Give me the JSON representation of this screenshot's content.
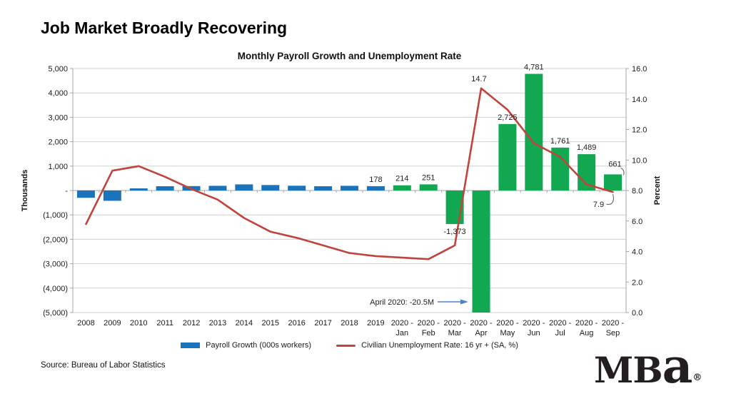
{
  "page": {
    "title": "Job Market Broadly Recovering",
    "source": "Source: Bureau of Labor Statistics",
    "logo": {
      "text_mb": "MB",
      "text_a": "a",
      "reg": "®"
    }
  },
  "chart_data": {
    "type": "combo-bar-line",
    "title": "Monthly Payroll Growth and Unemployment Rate",
    "categories": [
      "2008",
      "2009",
      "2010",
      "2011",
      "2012",
      "2013",
      "2014",
      "2015",
      "2016",
      "2017",
      "2018",
      "2019",
      "2020 Jan",
      "2020 Feb",
      "2020 Mar",
      "2020 Apr",
      "2020 May",
      "2020 Jun",
      "2020 Jul",
      "2020 Aug",
      "2020 Sep"
    ],
    "x_tick_line1": [
      "2008",
      "2009",
      "2010",
      "2011",
      "2012",
      "2013",
      "2014",
      "2015",
      "2016",
      "2017",
      "2018",
      "2019",
      "2020 -",
      "2020 -",
      "2020 -",
      "2020 -",
      "2020 -",
      "2020 -",
      "2020 -",
      "2020 -",
      "2020 -"
    ],
    "x_tick_line2": [
      "",
      "",
      "",
      "",
      "",
      "",
      "",
      "",
      "",
      "",
      "",
      "",
      "Jan",
      "Feb",
      "Mar",
      "Apr",
      "May",
      "Jun",
      "Jul",
      "Aug",
      "Sep"
    ],
    "series": [
      {
        "name": "Payroll Growth (000s workers)",
        "type": "bar",
        "axis": "left",
        "values": [
          -298,
          -421,
          88,
          174,
          181,
          192,
          250,
          226,
          195,
          176,
          193,
          178,
          214,
          251,
          -1373,
          -20500,
          2725,
          4781,
          1761,
          1489,
          661
        ]
      },
      {
        "name": "Civilian Unemployment Rate: 16 yr + (SA, %)",
        "type": "line",
        "axis": "right",
        "values": [
          5.8,
          9.3,
          9.6,
          8.9,
          8.1,
          7.4,
          6.2,
          5.3,
          4.9,
          4.4,
          3.9,
          3.7,
          3.6,
          3.5,
          4.4,
          14.7,
          13.3,
          11.1,
          10.2,
          8.4,
          7.9
        ]
      }
    ],
    "bar_labels": [
      "",
      "",
      "",
      "",
      "",
      "",
      "",
      "",
      "",
      "",
      "",
      "178",
      "214",
      "251",
      "-1,373",
      "",
      "2,725",
      "4,781",
      "1,761",
      "1,489",
      "661"
    ],
    "line_point_labels": {
      "peak": "14.7",
      "end": "7.9"
    },
    "annotation": "April 2020: -20.5M",
    "left_axis": {
      "title": "Thousands",
      "max": 5000,
      "min": -5000,
      "ticks": [
        "5,000",
        "4,000",
        "3,000",
        "2,000",
        "1,000",
        "-",
        "(1,000)",
        "(2,000)",
        "(3,000)",
        "(4,000)",
        "(5,000)"
      ]
    },
    "right_axis": {
      "title": "Percent",
      "max": 16,
      "min": 0,
      "ticks": [
        "16.0",
        "14.0",
        "12.0",
        "10.0",
        "8.0",
        "6.0",
        "4.0",
        "2.0",
        "0.0"
      ]
    },
    "green_start_index": 12,
    "colors": {
      "bar_blue": "#1B74BB",
      "bar_green": "#12A852",
      "line_red": "#C0433C",
      "annotation_arrow": "#4F81CB",
      "gridline": "#CFCFCF",
      "axis": "#A6A6A6"
    },
    "legend": [
      {
        "label": "Payroll Growth (000s workers)",
        "swatch": "bar"
      },
      {
        "label": "Civilian Unemployment Rate: 16 yr + (SA, %)",
        "swatch": "line"
      }
    ]
  }
}
